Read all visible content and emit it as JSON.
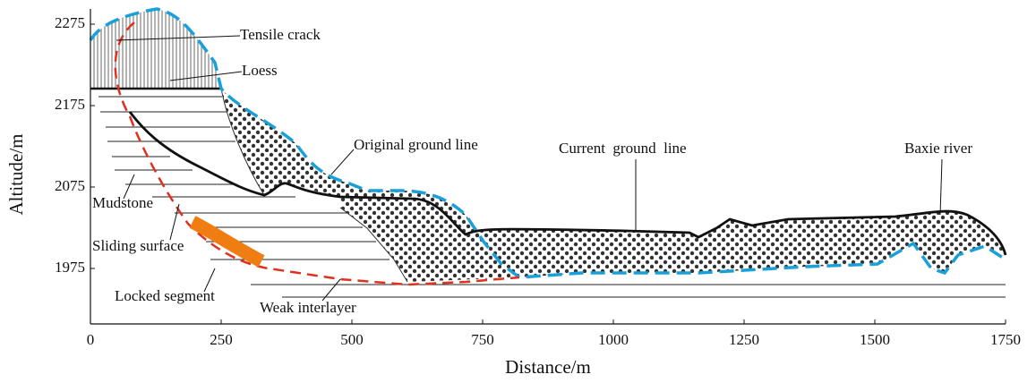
{
  "chart_data": {
    "type": "profile",
    "xlabel": "Distance/m",
    "ylabel": "Altitude/m",
    "xlim": [
      0,
      1750
    ],
    "ylim": [
      1975,
      2275
    ],
    "xticks": [
      0,
      250,
      500,
      750,
      1000,
      1250,
      1500,
      1750
    ],
    "yticks": [
      1975,
      2075,
      2175,
      2275
    ],
    "annotations": [
      "Tensile crack",
      "Loess",
      "Original ground line",
      "Current  ground  line",
      "Baxie river",
      "Mudstone",
      "Sliding surface",
      "Locked segment",
      "Weak interlayer"
    ]
  }
}
